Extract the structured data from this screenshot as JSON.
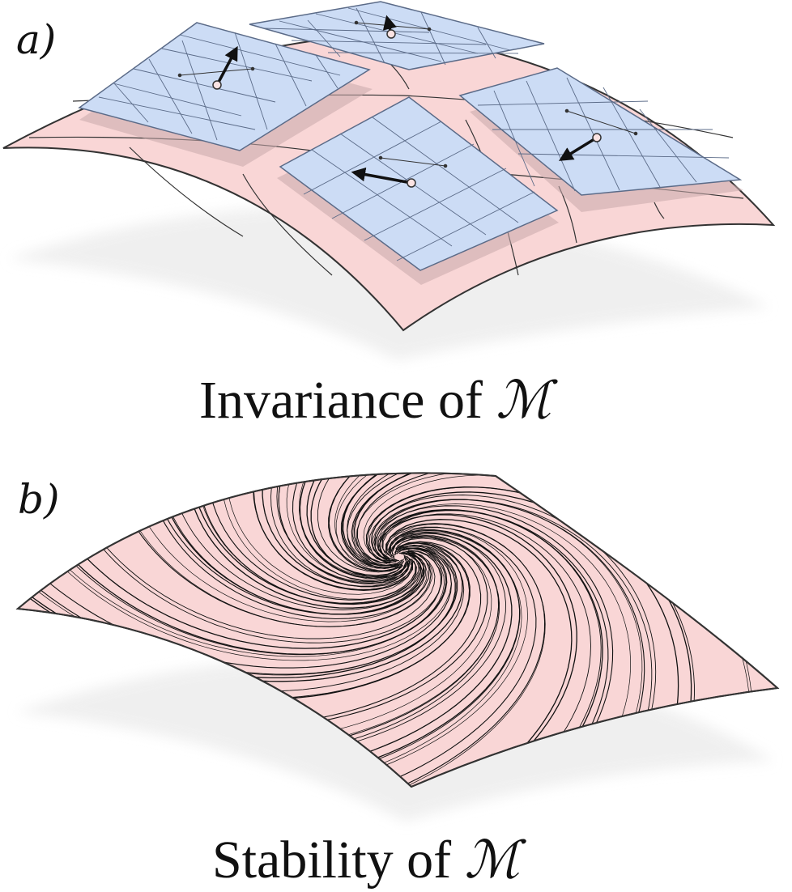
{
  "panel_a": {
    "label": "a)",
    "caption_text": "Invariance of",
    "caption_symbol": "ℳ"
  },
  "panel_b": {
    "label": "b)",
    "caption_text": "Stability of",
    "caption_symbol": "ℳ"
  },
  "colors": {
    "manifold_fill": "#f9d6d6",
    "tangent_plane_fill": "#ccdcf5",
    "tangent_plane_grid": "#5b6b88",
    "outline": "#333333",
    "arrow": "#111111",
    "point_fill": "#fbe3e3",
    "shadow": "#eeeeee"
  },
  "icons": [
    "manifold-surface",
    "tangent-plane",
    "vector-arrow",
    "base-point",
    "spiral-flow-lines"
  ]
}
